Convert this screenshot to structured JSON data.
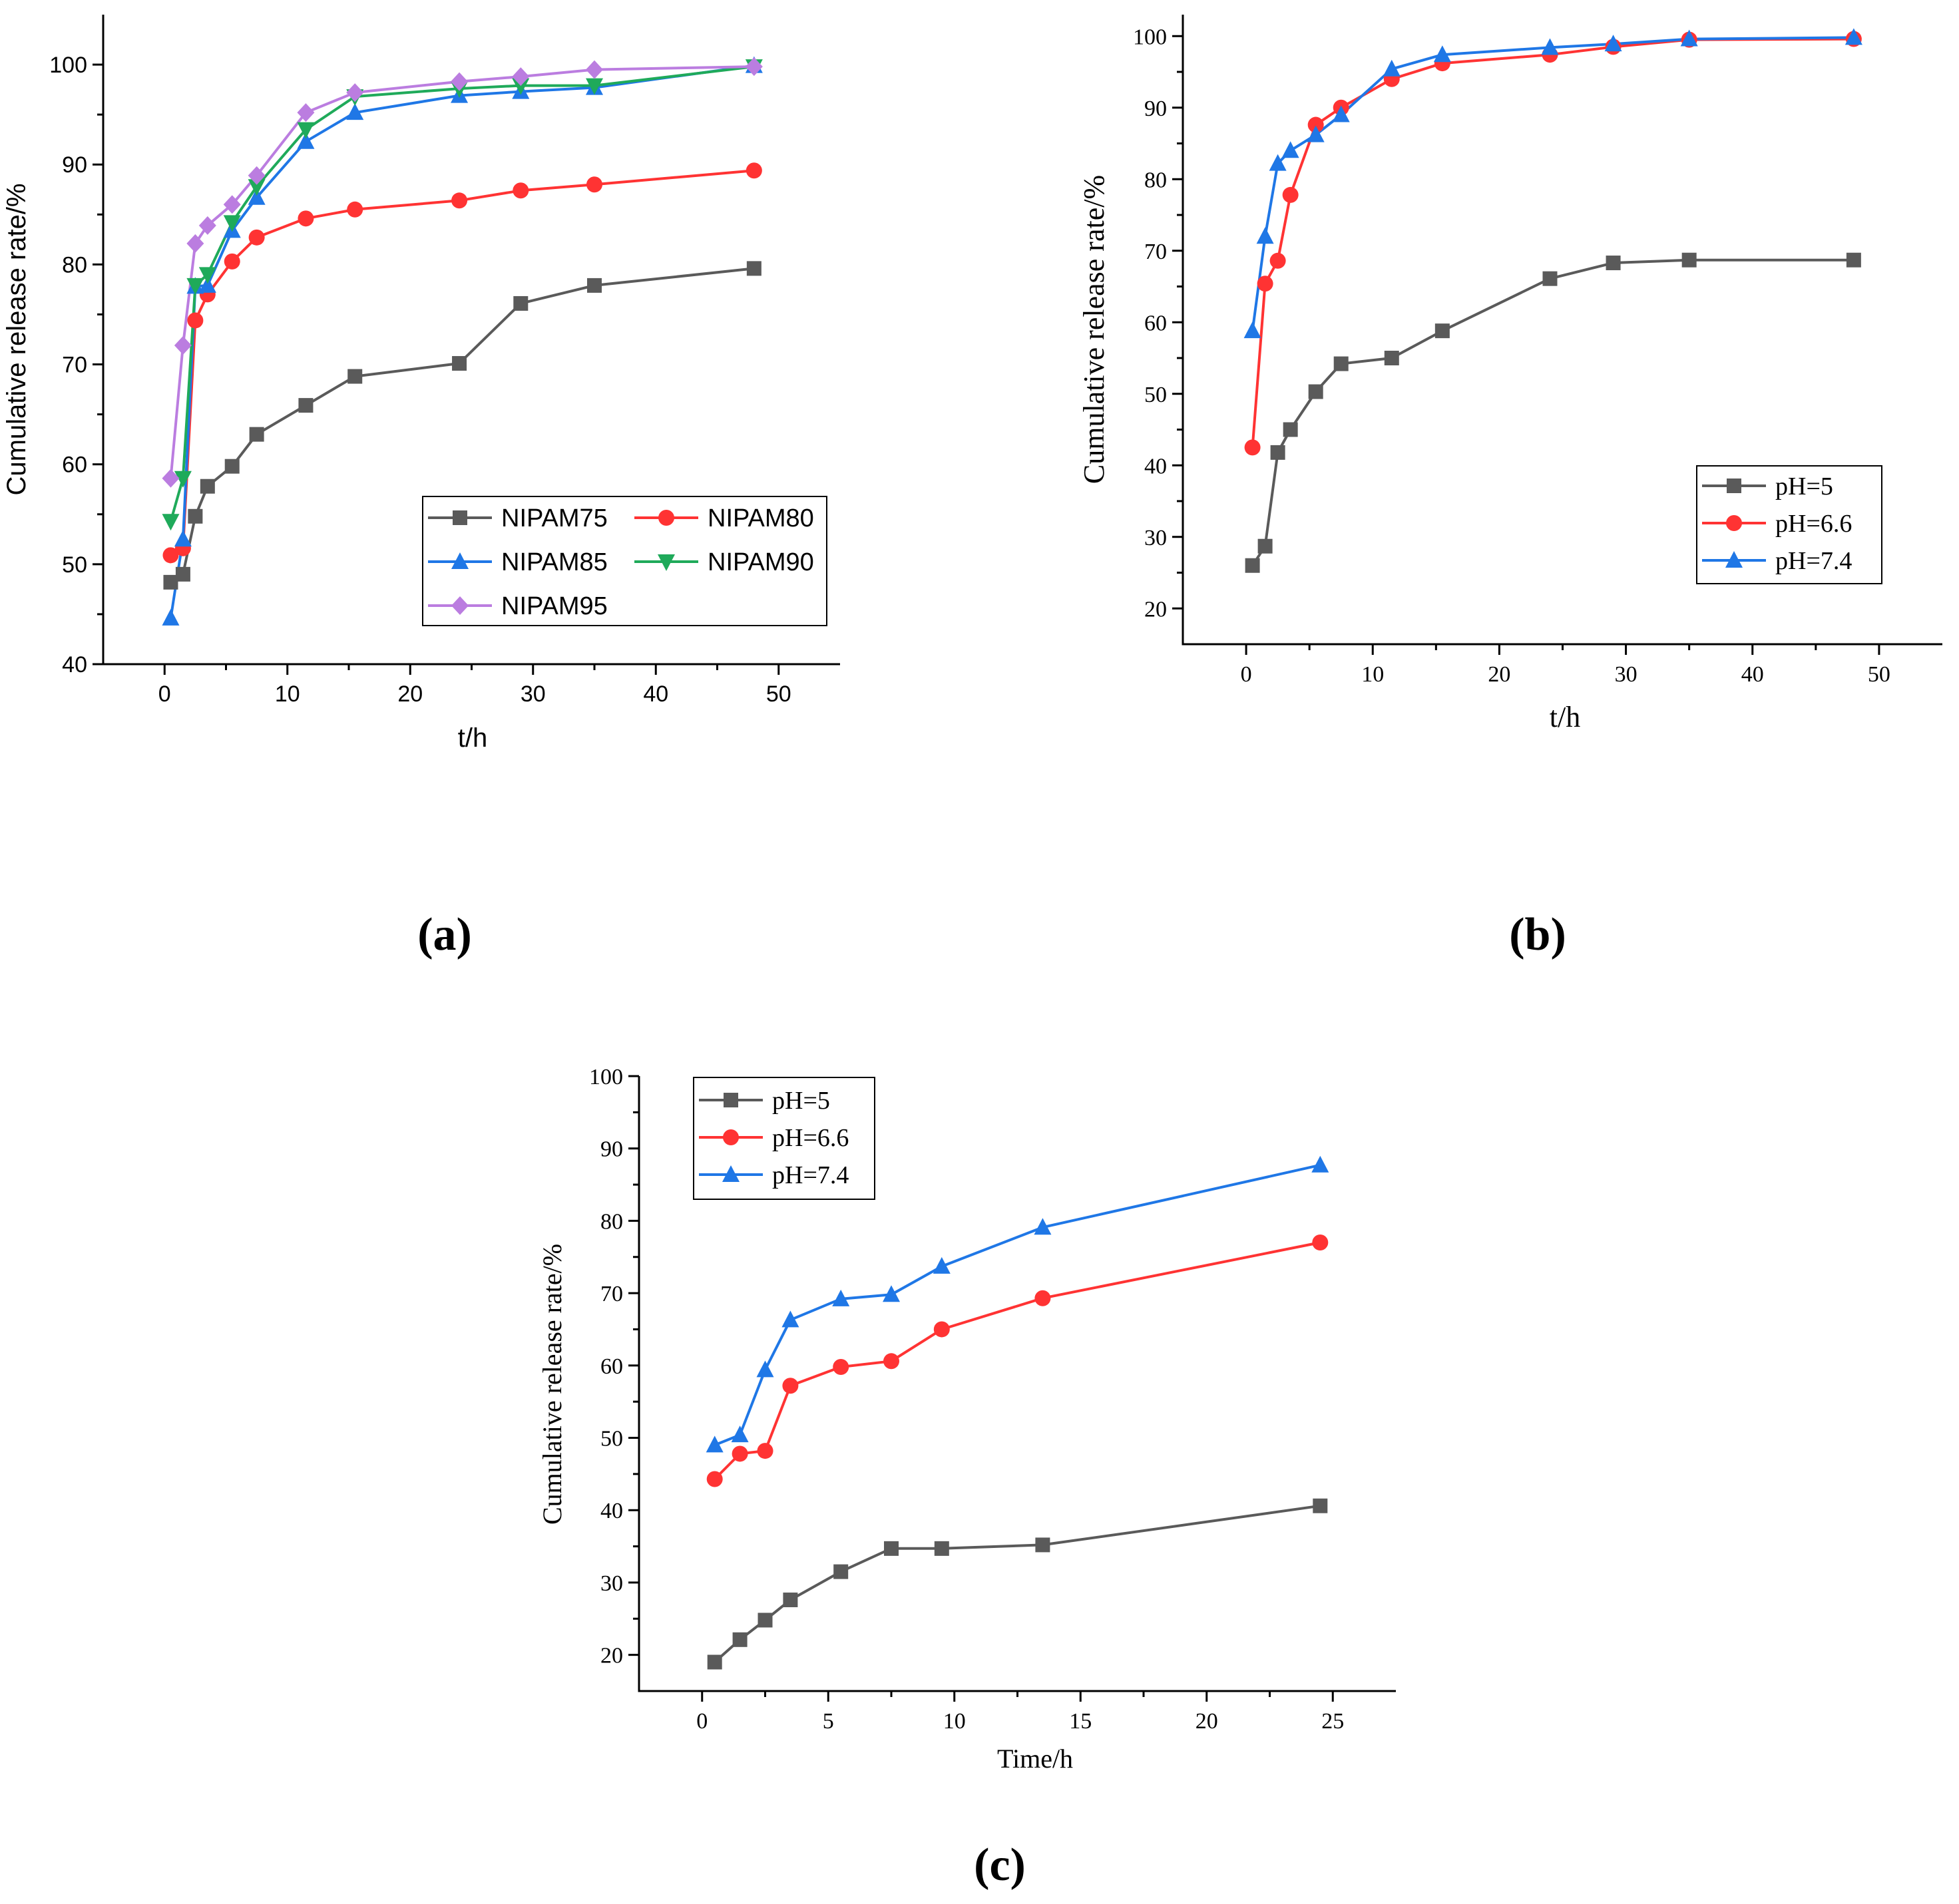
{
  "chart_data": [
    {
      "type": "line",
      "panel_label": "(a)",
      "xlabel": "t/h",
      "ylabel": "Cumulative release rate/%",
      "xlim": [
        -5,
        55
      ],
      "ylim": [
        40,
        105
      ],
      "xticks": [
        0,
        10,
        20,
        30,
        40,
        50
      ],
      "yticks": [
        40,
        50,
        60,
        70,
        80,
        90,
        100
      ],
      "grid": false,
      "legend": "bottom-right",
      "series": [
        {
          "name": "NIPAM75",
          "color": "#5a5a5a",
          "marker": "square",
          "x": [
            0.5,
            1.5,
            2.5,
            3.5,
            5.5,
            7.5,
            11.5,
            15.5,
            24,
            29,
            35,
            48
          ],
          "y": [
            48.2,
            49.0,
            54.8,
            57.8,
            59.8,
            63.0,
            65.9,
            68.8,
            70.1,
            76.1,
            77.9,
            79.6
          ]
        },
        {
          "name": "NIPAM80",
          "color": "#ff3333",
          "marker": "circle",
          "x": [
            0.5,
            1.5,
            2.5,
            3.5,
            5.5,
            7.5,
            11.5,
            15.5,
            24,
            29,
            35,
            48
          ],
          "y": [
            50.9,
            51.6,
            74.4,
            77.0,
            80.3,
            82.7,
            84.6,
            85.5,
            86.4,
            87.4,
            88.0,
            89.4
          ]
        },
        {
          "name": "NIPAM85",
          "color": "#1f77e6",
          "marker": "triangle-up",
          "x": [
            0.5,
            1.5,
            2.5,
            3.5,
            5.5,
            7.5,
            11.5,
            15.5,
            24,
            29,
            35,
            48
          ],
          "y": [
            44.6,
            52.5,
            77.8,
            77.9,
            83.4,
            86.7,
            92.3,
            95.2,
            96.9,
            97.3,
            97.7,
            99.9
          ]
        },
        {
          "name": "NIPAM90",
          "color": "#1faa5a",
          "marker": "triangle-down",
          "x": [
            0.5,
            1.5,
            2.5,
            3.5,
            5.5,
            7.5,
            11.5,
            15.5,
            24,
            29,
            35,
            48
          ],
          "y": [
            54.3,
            58.6,
            77.9,
            79.0,
            84.2,
            87.8,
            93.5,
            96.8,
            97.6,
            97.9,
            97.9,
            99.8
          ]
        },
        {
          "name": "NIPAM95",
          "color": "#bb7de0",
          "marker": "diamond",
          "x": [
            0.5,
            1.5,
            2.5,
            3.5,
            5.5,
            7.5,
            11.5,
            15.5,
            24,
            29,
            35,
            48
          ],
          "y": [
            58.6,
            71.9,
            82.1,
            83.9,
            86.0,
            88.9,
            95.2,
            97.2,
            98.3,
            98.8,
            99.5,
            99.8
          ]
        }
      ]
    },
    {
      "type": "line",
      "panel_label": "(b)",
      "xlabel": "t/h",
      "ylabel": "Cumulative release rate/%",
      "xlim": [
        -5,
        55
      ],
      "ylim": [
        15,
        103
      ],
      "xticks": [
        0,
        10,
        20,
        30,
        40,
        50
      ],
      "yticks": [
        20,
        30,
        40,
        50,
        60,
        70,
        80,
        90,
        100
      ],
      "grid": false,
      "legend": "bottom-right",
      "series": [
        {
          "name": "pH=5",
          "color": "#5a5a5a",
          "marker": "square",
          "x": [
            0.5,
            1.5,
            2.5,
            3.5,
            5.5,
            7.5,
            11.5,
            15.5,
            24,
            29,
            35,
            48
          ],
          "y": [
            26.0,
            28.7,
            41.8,
            45.0,
            50.3,
            54.2,
            55.0,
            58.8,
            66.1,
            68.3,
            68.7,
            68.7
          ]
        },
        {
          "name": "pH=6.6",
          "color": "#ff3333",
          "marker": "circle",
          "x": [
            0.5,
            1.5,
            2.5,
            3.5,
            5.5,
            7.5,
            11.5,
            15.5,
            24,
            29,
            35,
            48
          ],
          "y": [
            42.5,
            65.4,
            68.6,
            77.8,
            87.6,
            90.0,
            94.0,
            96.2,
            97.4,
            98.5,
            99.5,
            99.6
          ]
        },
        {
          "name": "pH=7.4",
          "color": "#1f77e6",
          "marker": "triangle-up",
          "x": [
            0.5,
            1.5,
            2.5,
            3.5,
            5.5,
            7.5,
            11.5,
            15.5,
            24,
            29,
            35,
            48
          ],
          "y": [
            58.8,
            72.0,
            82.2,
            84.0,
            86.2,
            89.0,
            95.4,
            97.4,
            98.4,
            98.9,
            99.6,
            99.8
          ]
        }
      ]
    },
    {
      "type": "line",
      "panel_label": "(c)",
      "xlabel": "Time/h",
      "ylabel": "Cumulative release rate/%",
      "xlim": [
        -2.5,
        27.5
      ],
      "ylim": [
        15,
        100
      ],
      "xticks": [
        0,
        5,
        10,
        15,
        20,
        25
      ],
      "yticks": [
        20,
        30,
        40,
        50,
        60,
        70,
        80,
        90,
        100
      ],
      "grid": false,
      "legend": "top-left",
      "series": [
        {
          "name": "pH=5",
          "color": "#5a5a5a",
          "marker": "square",
          "x": [
            0.5,
            1.5,
            2.5,
            3.5,
            5.5,
            7.5,
            9.5,
            13.5,
            24.5
          ],
          "y": [
            19.0,
            22.1,
            24.8,
            27.6,
            31.5,
            34.7,
            34.7,
            35.2,
            40.6
          ]
        },
        {
          "name": "pH=6.6",
          "color": "#ff3333",
          "marker": "circle",
          "x": [
            0.5,
            1.5,
            2.5,
            3.5,
            5.5,
            7.5,
            9.5,
            13.5,
            24.5
          ],
          "y": [
            44.3,
            47.8,
            48.2,
            57.2,
            59.8,
            60.6,
            65.0,
            69.3,
            77.0
          ]
        },
        {
          "name": "pH=7.4",
          "color": "#1f77e6",
          "marker": "triangle-up",
          "x": [
            0.5,
            1.5,
            2.5,
            3.5,
            5.5,
            7.5,
            9.5,
            13.5,
            24.5
          ],
          "y": [
            49.0,
            50.4,
            59.4,
            66.3,
            69.2,
            69.8,
            73.7,
            79.1,
            87.7
          ]
        }
      ]
    }
  ]
}
